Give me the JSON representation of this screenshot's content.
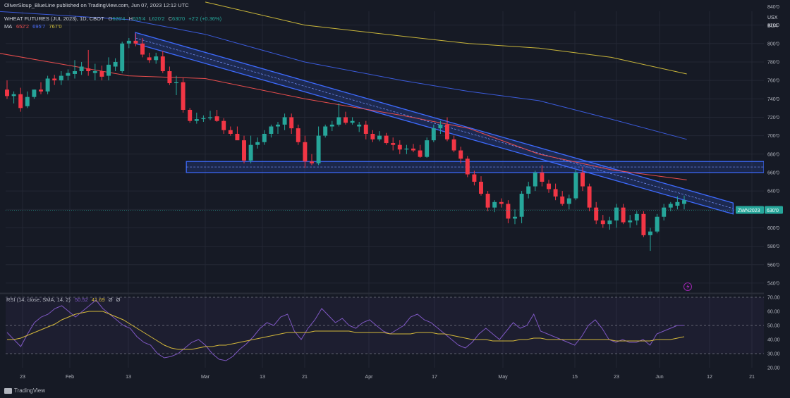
{
  "publisher": "OliverSloup_BlueLine published on TradingView.com, Jun 07, 2023 12:12 UTC",
  "legend": {
    "symbol": "WHEAT FUTURES (JUL 2023), 1D, CBOT",
    "o_label": "O",
    "o": "626'4",
    "h_label": "H",
    "h": "635'4",
    "l_label": "L",
    "l": "620'2",
    "c_label": "C",
    "c": "630'0",
    "change": "+2'2 (+0.36%)",
    "ma_label": "MA",
    "ma_values": [
      "652'2",
      "695'7",
      "767'0"
    ]
  },
  "currency": "USX",
  "currency_sub": "BUA",
  "price_tag": {
    "symbol": "ZWN2023",
    "price": "630'0"
  },
  "rsi_legend": {
    "label": "RSI (14, close, SMA, 14, 2)",
    "rsi": "50.52",
    "ma": "41.69",
    "extra1": "Ø",
    "extra2": "Ø"
  },
  "brand": "TradingView",
  "colors": {
    "up": "#26a69a",
    "down": "#f23645",
    "ma_red": "#e84d4d",
    "ma_blue": "#3b5bdb",
    "ma_yellow": "#c8b53a",
    "channel": "#2f57d4",
    "rsi_line": "#7e57c2",
    "rsi_ma": "#d4b83a"
  },
  "chart_data": [
    {
      "type": "candlestick",
      "title": "WHEAT FUTURES (JUL 2023), 1D, CBOT",
      "y_unit": "USX",
      "ylim": [
        530,
        835
      ],
      "y_ticks": [
        "840'0",
        "820'0",
        "800'0",
        "780'0",
        "760'0",
        "740'0",
        "720'0",
        "700'0",
        "680'0",
        "660'0",
        "640'0",
        "620'0",
        "600'0",
        "580'0",
        "560'0",
        "540'0"
      ],
      "x_ticks": [
        "23",
        "Feb",
        "13",
        "Mar",
        "13",
        "21",
        "Apr",
        "17",
        "May",
        "15",
        "23",
        "Jun",
        "12",
        "21"
      ],
      "candles": [
        {
          "o": 750,
          "h": 760,
          "l": 740,
          "c": 743
        },
        {
          "o": 743,
          "h": 748,
          "l": 735,
          "c": 745
        },
        {
          "o": 745,
          "h": 752,
          "l": 726,
          "c": 730
        },
        {
          "o": 732,
          "h": 748,
          "l": 730,
          "c": 742
        },
        {
          "o": 742,
          "h": 750,
          "l": 740,
          "c": 750
        },
        {
          "o": 750,
          "h": 758,
          "l": 745,
          "c": 748
        },
        {
          "o": 748,
          "h": 765,
          "l": 745,
          "c": 762
        },
        {
          "o": 762,
          "h": 766,
          "l": 755,
          "c": 760
        },
        {
          "o": 760,
          "h": 770,
          "l": 755,
          "c": 765
        },
        {
          "o": 765,
          "h": 772,
          "l": 760,
          "c": 768
        },
        {
          "o": 767,
          "h": 782,
          "l": 762,
          "c": 770
        },
        {
          "o": 770,
          "h": 780,
          "l": 766,
          "c": 775
        },
        {
          "o": 773,
          "h": 793,
          "l": 765,
          "c": 770
        },
        {
          "o": 768,
          "h": 778,
          "l": 760,
          "c": 770
        },
        {
          "o": 770,
          "h": 776,
          "l": 760,
          "c": 764
        },
        {
          "o": 765,
          "h": 785,
          "l": 760,
          "c": 777
        },
        {
          "o": 775,
          "h": 784,
          "l": 770,
          "c": 780
        },
        {
          "o": 770,
          "h": 802,
          "l": 768,
          "c": 800
        },
        {
          "o": 800,
          "h": 806,
          "l": 795,
          "c": 803
        },
        {
          "o": 803,
          "h": 811,
          "l": 797,
          "c": 800
        },
        {
          "o": 800,
          "h": 806,
          "l": 785,
          "c": 788
        },
        {
          "o": 785,
          "h": 790,
          "l": 779,
          "c": 782
        },
        {
          "o": 782,
          "h": 790,
          "l": 778,
          "c": 786
        },
        {
          "o": 786,
          "h": 792,
          "l": 768,
          "c": 770
        },
        {
          "o": 770,
          "h": 775,
          "l": 755,
          "c": 757
        },
        {
          "o": 757,
          "h": 765,
          "l": 744,
          "c": 758
        },
        {
          "o": 758,
          "h": 763,
          "l": 725,
          "c": 728
        },
        {
          "o": 728,
          "h": 730,
          "l": 714,
          "c": 716
        },
        {
          "o": 716,
          "h": 725,
          "l": 713,
          "c": 718
        },
        {
          "o": 718,
          "h": 722,
          "l": 715,
          "c": 719
        },
        {
          "o": 719,
          "h": 727,
          "l": 717,
          "c": 720
        },
        {
          "o": 721,
          "h": 728,
          "l": 715,
          "c": 716
        },
        {
          "o": 716,
          "h": 719,
          "l": 702,
          "c": 706
        },
        {
          "o": 706,
          "h": 710,
          "l": 700,
          "c": 702
        },
        {
          "o": 702,
          "h": 710,
          "l": 698,
          "c": 695
        },
        {
          "o": 695,
          "h": 700,
          "l": 670,
          "c": 673
        },
        {
          "o": 673,
          "h": 700,
          "l": 670,
          "c": 690
        },
        {
          "o": 690,
          "h": 698,
          "l": 686,
          "c": 693
        },
        {
          "o": 693,
          "h": 706,
          "l": 690,
          "c": 702
        },
        {
          "o": 702,
          "h": 712,
          "l": 698,
          "c": 710
        },
        {
          "o": 710,
          "h": 715,
          "l": 702,
          "c": 712
        },
        {
          "o": 712,
          "h": 724,
          "l": 706,
          "c": 720
        },
        {
          "o": 720,
          "h": 724,
          "l": 702,
          "c": 708
        },
        {
          "o": 708,
          "h": 712,
          "l": 690,
          "c": 693
        },
        {
          "o": 693,
          "h": 700,
          "l": 665,
          "c": 672
        },
        {
          "o": 672,
          "h": 680,
          "l": 668,
          "c": 670
        },
        {
          "o": 670,
          "h": 710,
          "l": 668,
          "c": 700
        },
        {
          "o": 700,
          "h": 712,
          "l": 698,
          "c": 710
        },
        {
          "o": 710,
          "h": 716,
          "l": 705,
          "c": 712
        },
        {
          "o": 712,
          "h": 735,
          "l": 710,
          "c": 720
        },
        {
          "o": 720,
          "h": 726,
          "l": 712,
          "c": 714
        },
        {
          "o": 714,
          "h": 720,
          "l": 712,
          "c": 716
        },
        {
          "o": 710,
          "h": 715,
          "l": 704,
          "c": 712
        },
        {
          "o": 712,
          "h": 716,
          "l": 696,
          "c": 702
        },
        {
          "o": 702,
          "h": 706,
          "l": 693,
          "c": 696
        },
        {
          "o": 696,
          "h": 705,
          "l": 694,
          "c": 700
        },
        {
          "o": 700,
          "h": 703,
          "l": 690,
          "c": 692
        },
        {
          "o": 692,
          "h": 698,
          "l": 684,
          "c": 690
        },
        {
          "o": 690,
          "h": 695,
          "l": 680,
          "c": 685
        },
        {
          "o": 685,
          "h": 690,
          "l": 680,
          "c": 686
        },
        {
          "o": 686,
          "h": 691,
          "l": 682,
          "c": 684
        },
        {
          "o": 684,
          "h": 690,
          "l": 676,
          "c": 677
        },
        {
          "o": 677,
          "h": 698,
          "l": 676,
          "c": 695
        },
        {
          "o": 695,
          "h": 712,
          "l": 693,
          "c": 708
        },
        {
          "o": 708,
          "h": 716,
          "l": 702,
          "c": 712
        },
        {
          "o": 712,
          "h": 720,
          "l": 694,
          "c": 696
        },
        {
          "o": 696,
          "h": 700,
          "l": 682,
          "c": 684
        },
        {
          "o": 684,
          "h": 688,
          "l": 670,
          "c": 675
        },
        {
          "o": 675,
          "h": 678,
          "l": 655,
          "c": 658
        },
        {
          "o": 658,
          "h": 662,
          "l": 646,
          "c": 650
        },
        {
          "o": 650,
          "h": 656,
          "l": 635,
          "c": 637
        },
        {
          "o": 637,
          "h": 640,
          "l": 618,
          "c": 622
        },
        {
          "o": 622,
          "h": 630,
          "l": 617,
          "c": 628
        },
        {
          "o": 628,
          "h": 632,
          "l": 622,
          "c": 626
        },
        {
          "o": 626,
          "h": 630,
          "l": 605,
          "c": 610
        },
        {
          "o": 610,
          "h": 620,
          "l": 604,
          "c": 612
        },
        {
          "o": 612,
          "h": 640,
          "l": 605,
          "c": 637
        },
        {
          "o": 637,
          "h": 650,
          "l": 632,
          "c": 645
        },
        {
          "o": 645,
          "h": 662,
          "l": 640,
          "c": 660
        },
        {
          "o": 660,
          "h": 668,
          "l": 645,
          "c": 650
        },
        {
          "o": 648,
          "h": 652,
          "l": 638,
          "c": 642
        },
        {
          "o": 642,
          "h": 648,
          "l": 630,
          "c": 634
        },
        {
          "o": 634,
          "h": 640,
          "l": 624,
          "c": 626
        },
        {
          "o": 626,
          "h": 636,
          "l": 620,
          "c": 632
        },
        {
          "o": 632,
          "h": 663,
          "l": 630,
          "c": 660
        },
        {
          "o": 660,
          "h": 666,
          "l": 640,
          "c": 645
        },
        {
          "o": 645,
          "h": 648,
          "l": 618,
          "c": 622
        },
        {
          "o": 622,
          "h": 628,
          "l": 604,
          "c": 608
        },
        {
          "o": 608,
          "h": 614,
          "l": 600,
          "c": 604
        },
        {
          "o": 604,
          "h": 612,
          "l": 598,
          "c": 608
        },
        {
          "o": 608,
          "h": 626,
          "l": 600,
          "c": 622
        },
        {
          "o": 622,
          "h": 626,
          "l": 604,
          "c": 606
        },
        {
          "o": 606,
          "h": 614,
          "l": 600,
          "c": 608
        },
        {
          "o": 608,
          "h": 618,
          "l": 603,
          "c": 615
        },
        {
          "o": 615,
          "h": 618,
          "l": 590,
          "c": 592
        },
        {
          "o": 592,
          "h": 600,
          "l": 575,
          "c": 596
        },
        {
          "o": 596,
          "h": 615,
          "l": 594,
          "c": 612
        },
        {
          "o": 612,
          "h": 626,
          "l": 608,
          "c": 622
        },
        {
          "o": 622,
          "h": 628,
          "l": 618,
          "c": 626
        },
        {
          "o": 624,
          "h": 634,
          "l": 620,
          "c": 628
        },
        {
          "o": 626,
          "h": 635,
          "l": 620,
          "c": 630
        }
      ],
      "ma_series": [
        {
          "name": "MA 1",
          "values": [
            [
              "2023-01-18",
              790
            ],
            [
              "2023-02-13",
              765
            ],
            [
              "2023-03-01",
              762
            ],
            [
              "2023-03-21",
              740
            ],
            [
              "2023-04-10",
              722
            ],
            [
              "2023-04-24",
              708
            ],
            [
              "2023-05-08",
              680
            ],
            [
              "2023-05-22",
              663
            ],
            [
              "2023-06-07",
              652
            ]
          ]
        },
        {
          "name": "MA 2",
          "values": [
            [
              "2023-01-18",
              835
            ],
            [
              "2023-02-13",
              826
            ],
            [
              "2023-03-01",
              810
            ],
            [
              "2023-03-21",
              780
            ],
            [
              "2023-04-10",
              760
            ],
            [
              "2023-04-24",
              748
            ],
            [
              "2023-05-08",
              738
            ],
            [
              "2023-05-22",
              718
            ],
            [
              "2023-06-07",
              696
            ]
          ]
        },
        {
          "name": "MA 3",
          "values": [
            [
              "2023-03-01",
              845
            ],
            [
              "2023-03-21",
              820
            ],
            [
              "2023-04-10",
              808
            ],
            [
              "2023-04-24",
              800
            ],
            [
              "2023-05-08",
              795
            ],
            [
              "2023-05-22",
              785
            ],
            [
              "2023-06-07",
              767
            ]
          ]
        }
      ],
      "annotations": {
        "descending_channel": {
          "start": [
            "2023-02-13",
            812
          ],
          "end": [
            "2023-06-14",
            627
          ],
          "width": 12
        },
        "horizontal_zone": {
          "start_date": "2023-02-28",
          "range": [
            660,
            672
          ]
        }
      }
    },
    {
      "type": "line",
      "title": "RSI (14, close, SMA, 14, 2)",
      "ylim": [
        20,
        72
      ],
      "y_ticks": [
        "70.00",
        "60.00",
        "50.00",
        "40.00",
        "30.00",
        "20.00"
      ],
      "bands": [
        70,
        50,
        30
      ],
      "series": [
        {
          "name": "RSI",
          "values": [
            45,
            40,
            35,
            44,
            52,
            56,
            58,
            62,
            64,
            60,
            56,
            60,
            64,
            68,
            62,
            58,
            54,
            50,
            48,
            42,
            38,
            36,
            30,
            27,
            28,
            30,
            34,
            38,
            40,
            36,
            30,
            26,
            25,
            28,
            33,
            37,
            42,
            48,
            52,
            50,
            56,
            58,
            46,
            40,
            48,
            54,
            62,
            57,
            52,
            55,
            50,
            48,
            52,
            54,
            50,
            46,
            44,
            47,
            50,
            56,
            58,
            54,
            52,
            48,
            44,
            40,
            36,
            34,
            38,
            44,
            48,
            44,
            40,
            46,
            52,
            48,
            50,
            58,
            46,
            44,
            42,
            40,
            38,
            36,
            42,
            50,
            54,
            48,
            40,
            38,
            40,
            38,
            38,
            40,
            36,
            44,
            46,
            48,
            50,
            50
          ]
        },
        {
          "name": "RSI MA",
          "values": [
            40,
            40,
            41,
            43,
            45,
            47,
            49,
            51,
            54,
            56,
            58,
            59,
            60,
            60,
            60,
            58,
            56,
            54,
            51,
            48,
            45,
            42,
            39,
            36,
            34,
            33,
            33,
            33,
            34,
            35,
            35,
            36,
            36,
            37,
            38,
            39,
            40,
            41,
            42,
            43,
            44,
            45,
            45,
            45,
            45,
            46,
            46,
            46,
            46,
            46,
            46,
            45,
            45,
            45,
            45,
            45,
            44,
            44,
            44,
            44,
            45,
            45,
            45,
            44,
            44,
            43,
            42,
            41,
            40,
            40,
            40,
            39,
            39,
            39,
            39,
            40,
            40,
            41,
            41,
            40,
            40,
            40,
            40,
            40,
            40,
            40,
            40,
            40,
            40,
            39,
            39,
            39,
            39,
            39,
            39,
            40,
            40,
            40,
            41,
            42
          ]
        }
      ]
    }
  ]
}
